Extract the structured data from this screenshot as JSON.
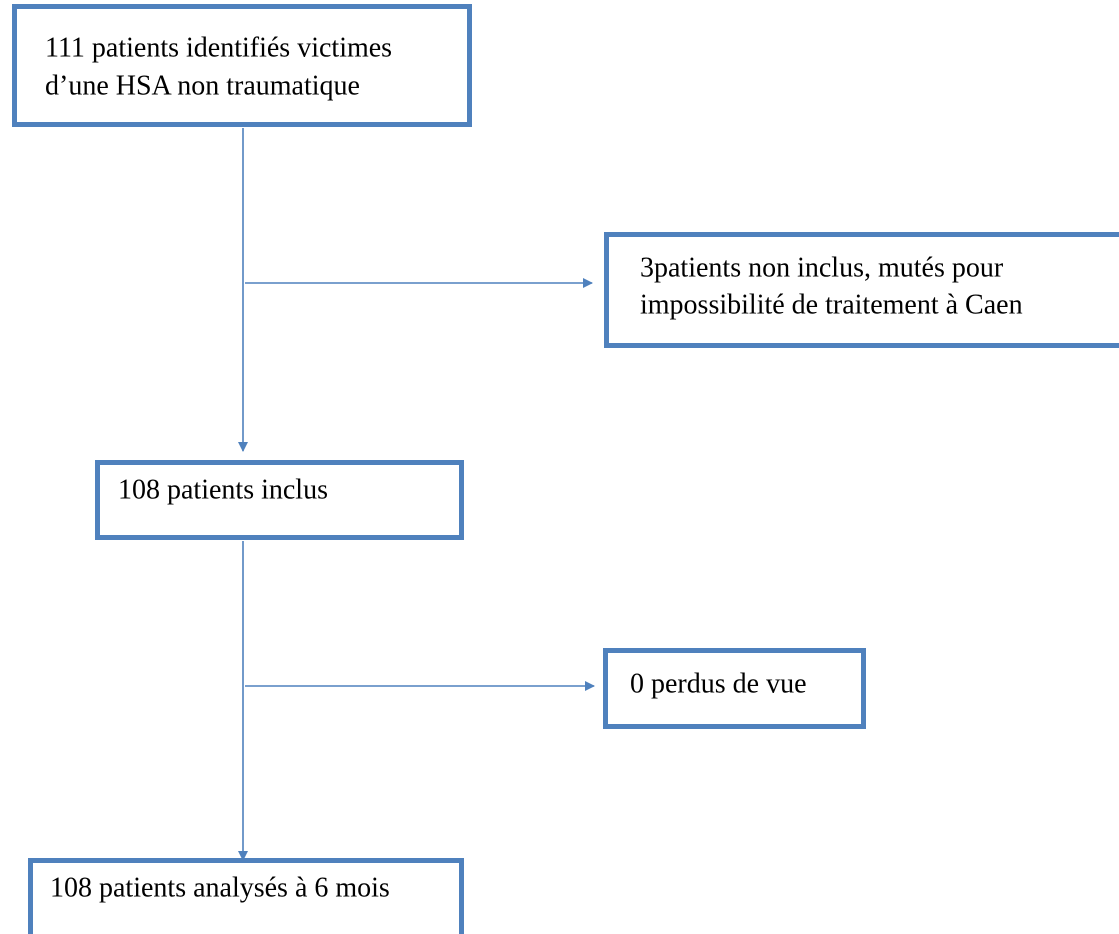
{
  "nodes": [
    {
      "lines": [
        "111 patients identifiés victimes",
        "d’une HSA non traumatique"
      ]
    },
    {
      "lines": [
        "3patients non inclus, mutés pour",
        "impossibilité de traitement à Caen"
      ]
    },
    {
      "lines": [
        "108 patients inclus"
      ]
    },
    {
      "lines": [
        "0 perdus de vue"
      ]
    },
    {
      "lines": [
        "108 patients analysés à 6 mois"
      ]
    }
  ]
}
